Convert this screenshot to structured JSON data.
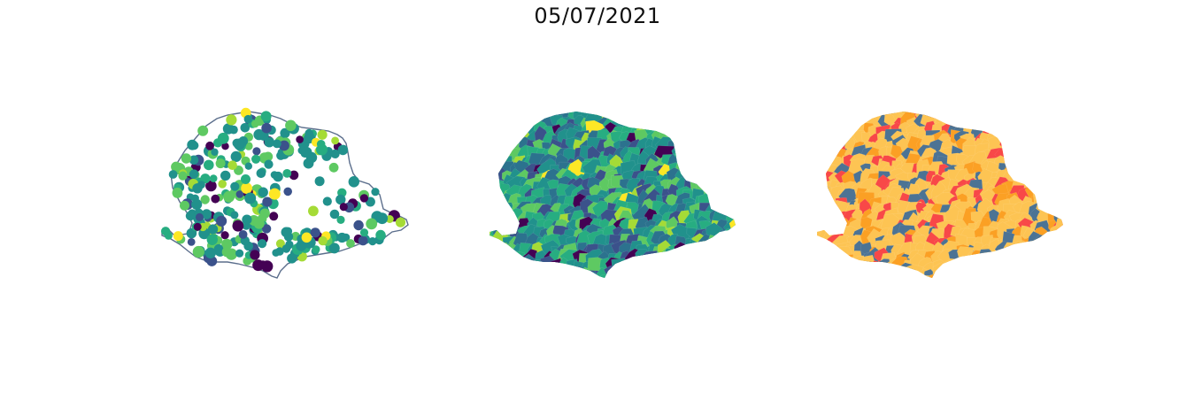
{
  "title": "05/07/2021",
  "panels": [
    {
      "kind": "proportional-points",
      "outline_color": "#5b6e8c",
      "palette": [
        "#440154",
        "#3b528b",
        "#21918c",
        "#27ad81",
        "#5ec962",
        "#a5db36",
        "#fde725"
      ]
    },
    {
      "kind": "choropleth-continuous",
      "palette": [
        "#440154",
        "#3b528b",
        "#2c728e",
        "#21918c",
        "#27ad81",
        "#5ec962",
        "#a5db36",
        "#fde725"
      ]
    },
    {
      "kind": "choropleth-categorical",
      "palette": [
        "#fdc453",
        "#fba024",
        "#f84848",
        "#4c7394"
      ]
    }
  ]
}
